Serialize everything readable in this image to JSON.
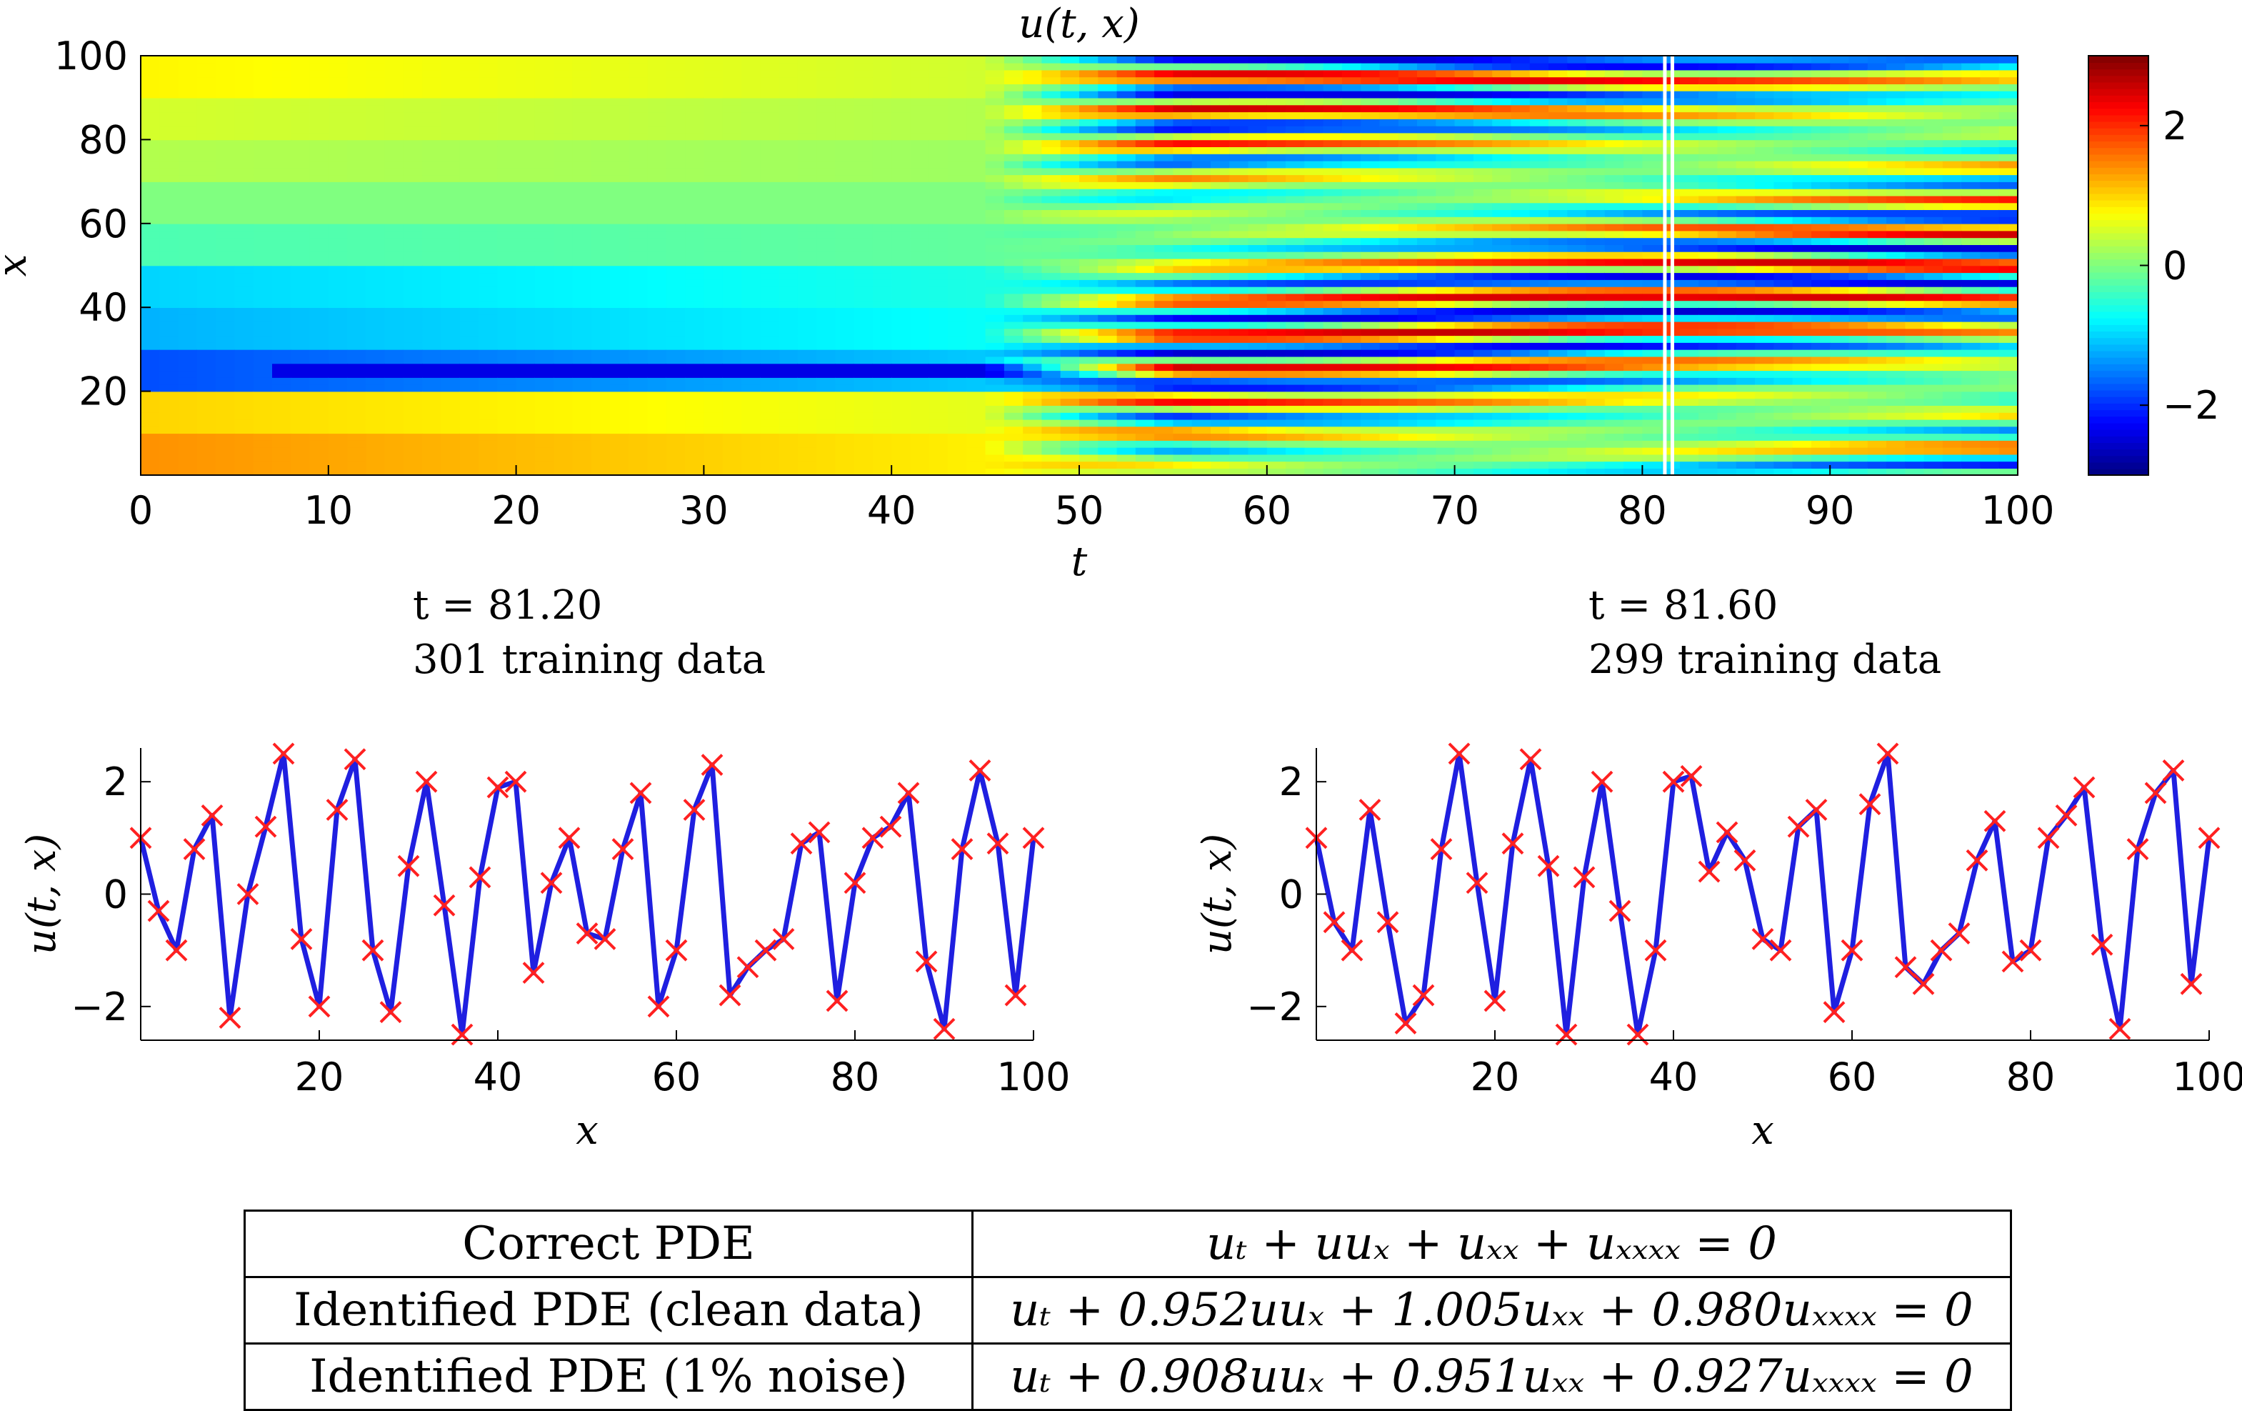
{
  "chart_data": [
    {
      "type": "heatmap",
      "title": "u(t, x)",
      "xlabel": "t",
      "ylabel": "x",
      "xlim": [
        0,
        100
      ],
      "ylim": [
        0,
        100
      ],
      "xticks": [
        0,
        10,
        20,
        30,
        40,
        50,
        60,
        70,
        80,
        90,
        100
      ],
      "yticks": [
        20,
        40,
        60,
        80,
        100
      ],
      "colorbar": {
        "range": [
          -3,
          3
        ],
        "ticks": [
          -2,
          0,
          2
        ],
        "colormap": "jet"
      },
      "marked_times": [
        81.2,
        81.6
      ],
      "description_values": {
        "laminar_until_t": 40,
        "chaotic_from_t": 45,
        "initial_profile": [
          {
            "x": 5,
            "u": 1.4
          },
          {
            "x": 15,
            "u": 1.0
          },
          {
            "x": 25,
            "u": -1.8
          },
          {
            "x": 35,
            "u": -1.2
          },
          {
            "x": 45,
            "u": -1.0
          },
          {
            "x": 55,
            "u": -0.3
          },
          {
            "x": 65,
            "u": 0.0
          },
          {
            "x": 75,
            "u": 0.3
          },
          {
            "x": 85,
            "u": 0.5
          },
          {
            "x": 95,
            "u": 0.8
          }
        ]
      }
    },
    {
      "type": "line",
      "annotation_time": "t = 81.20",
      "annotation_count": "301 training data",
      "xlabel": "x",
      "ylabel": "u(t, x)",
      "xlim": [
        0,
        100
      ],
      "ylim": [
        -2.6,
        2.6
      ],
      "xticks": [
        20,
        40,
        60,
        80,
        100
      ],
      "yticks": [
        -2,
        0,
        2
      ],
      "series": [
        {
          "role": "solution",
          "color": "#1f1fe0",
          "x": [
            0,
            2,
            4,
            6,
            8,
            10,
            12,
            14,
            16,
            18,
            20,
            22,
            24,
            26,
            28,
            30,
            32,
            34,
            36,
            38,
            40,
            42,
            44,
            46,
            48,
            50,
            52,
            54,
            56,
            58,
            60,
            62,
            64,
            66,
            68,
            70,
            72,
            74,
            76,
            78,
            80,
            82,
            84,
            86,
            88,
            90,
            92,
            94,
            96,
            98,
            100
          ],
          "y": [
            1.0,
            -0.3,
            -1.0,
            0.8,
            1.4,
            -2.2,
            0.0,
            1.2,
            2.5,
            -0.8,
            -2.0,
            1.5,
            2.4,
            -1.0,
            -2.1,
            0.5,
            2.0,
            -0.2,
            -2.5,
            0.3,
            1.9,
            2.0,
            -1.4,
            0.2,
            1.0,
            -0.7,
            -0.8,
            0.8,
            1.8,
            -2.0,
            -1.0,
            1.5,
            2.3,
            -1.8,
            -1.3,
            -1.0,
            -0.8,
            0.9,
            1.1,
            -1.9,
            0.2,
            1.0,
            1.2,
            1.8,
            -1.2,
            -2.4,
            0.8,
            2.2,
            0.9,
            -1.8,
            1.0
          ]
        },
        {
          "role": "training data",
          "marker": "x",
          "color": "#ff2020",
          "x": [
            0,
            2,
            4,
            6,
            8,
            10,
            12,
            14,
            16,
            18,
            20,
            22,
            24,
            26,
            28,
            30,
            32,
            34,
            36,
            38,
            40,
            42,
            44,
            46,
            48,
            50,
            52,
            54,
            56,
            58,
            60,
            62,
            64,
            66,
            68,
            70,
            72,
            74,
            76,
            78,
            80,
            82,
            84,
            86,
            88,
            90,
            92,
            94,
            96,
            98,
            100
          ],
          "y": [
            1.0,
            -0.3,
            -1.0,
            0.8,
            1.4,
            -2.2,
            0.0,
            1.2,
            2.5,
            -0.8,
            -2.0,
            1.5,
            2.4,
            -1.0,
            -2.1,
            0.5,
            2.0,
            -0.2,
            -2.5,
            0.3,
            1.9,
            2.0,
            -1.4,
            0.2,
            1.0,
            -0.7,
            -0.8,
            0.8,
            1.8,
            -2.0,
            -1.0,
            1.5,
            2.3,
            -1.8,
            -1.3,
            -1.0,
            -0.8,
            0.9,
            1.1,
            -1.9,
            0.2,
            1.0,
            1.2,
            1.8,
            -1.2,
            -2.4,
            0.8,
            2.2,
            0.9,
            -1.8,
            1.0
          ]
        }
      ]
    },
    {
      "type": "line",
      "annotation_time": "t = 81.60",
      "annotation_count": "299 training data",
      "xlabel": "x",
      "ylabel": "u(t, x)",
      "xlim": [
        0,
        100
      ],
      "ylim": [
        -2.6,
        2.6
      ],
      "xticks": [
        20,
        40,
        60,
        80,
        100
      ],
      "yticks": [
        -2,
        0,
        2
      ],
      "series": [
        {
          "role": "solution",
          "color": "#1f1fe0",
          "x": [
            0,
            2,
            4,
            6,
            8,
            10,
            12,
            14,
            16,
            18,
            20,
            22,
            24,
            26,
            28,
            30,
            32,
            34,
            36,
            38,
            40,
            42,
            44,
            46,
            48,
            50,
            52,
            54,
            56,
            58,
            60,
            62,
            64,
            66,
            68,
            70,
            72,
            74,
            76,
            78,
            80,
            82,
            84,
            86,
            88,
            90,
            92,
            94,
            96,
            98,
            100
          ],
          "y": [
            1.0,
            -0.5,
            -1.0,
            1.5,
            -0.5,
            -2.3,
            -1.8,
            0.8,
            2.5,
            0.2,
            -1.9,
            0.9,
            2.4,
            0.5,
            -2.5,
            0.3,
            2.0,
            -0.3,
            -2.5,
            -1.0,
            2.0,
            2.1,
            0.4,
            1.1,
            0.6,
            -0.8,
            -1.0,
            1.2,
            1.5,
            -2.1,
            -1.0,
            1.6,
            2.5,
            -1.3,
            -1.6,
            -1.0,
            -0.7,
            0.6,
            1.3,
            -1.2,
            -1.0,
            1.0,
            1.4,
            1.9,
            -0.9,
            -2.4,
            0.8,
            1.8,
            2.2,
            -1.6,
            1.0
          ]
        },
        {
          "role": "training data",
          "marker": "x",
          "color": "#ff2020",
          "x": [
            0,
            2,
            4,
            6,
            8,
            10,
            12,
            14,
            16,
            18,
            20,
            22,
            24,
            26,
            28,
            30,
            32,
            34,
            36,
            38,
            40,
            42,
            44,
            46,
            48,
            50,
            52,
            54,
            56,
            58,
            60,
            62,
            64,
            66,
            68,
            70,
            72,
            74,
            76,
            78,
            80,
            82,
            84,
            86,
            88,
            90,
            92,
            94,
            96,
            98,
            100
          ],
          "y": [
            1.0,
            -0.5,
            -1.0,
            1.5,
            -0.5,
            -2.3,
            -1.8,
            0.8,
            2.5,
            0.2,
            -1.9,
            0.9,
            2.4,
            0.5,
            -2.5,
            0.3,
            2.0,
            -0.3,
            -2.5,
            -1.0,
            2.0,
            2.1,
            0.4,
            1.1,
            0.6,
            -0.8,
            -1.0,
            1.2,
            1.5,
            -2.1,
            -1.0,
            1.6,
            2.5,
            -1.3,
            -1.6,
            -1.0,
            -0.7,
            0.6,
            1.3,
            -1.2,
            -1.0,
            1.0,
            1.4,
            1.9,
            -0.9,
            -2.4,
            0.8,
            1.8,
            2.2,
            -1.6,
            1.0
          ]
        }
      ]
    },
    {
      "type": "table",
      "rows": [
        [
          "Correct PDE",
          "uₜ + uuₓ + uₓₓ + uₓₓₓₓ = 0"
        ],
        [
          "Identified PDE (clean data)",
          "uₜ + 0.952uuₓ + 1.005uₓₓ + 0.980uₓₓₓₓ = 0"
        ],
        [
          "Identified PDE (1% noise)",
          "uₜ + 0.908uuₓ + 0.951uₓₓ + 0.927uₓₓₓₓ = 0"
        ]
      ]
    }
  ]
}
